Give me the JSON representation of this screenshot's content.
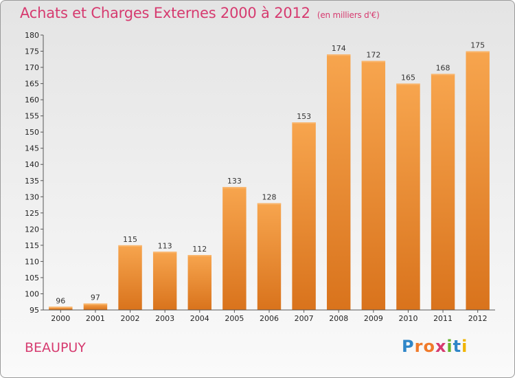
{
  "header": {
    "title": "Achats et Charges Externes 2000 à 2012",
    "unit": "(en milliers d'€)"
  },
  "footer": {
    "commune": "BEAUPUY",
    "logo_letters": [
      "P",
      "r",
      "o",
      "x",
      "i",
      "t",
      "i"
    ],
    "logo_colors": [
      "#2f86c8",
      "#f07a2a",
      "#f07a2a",
      "#d63a6f",
      "#66b32e",
      "#2f86c8",
      "#f0b400"
    ]
  },
  "colors": {
    "title": "#d63a6f",
    "bar_top": "#f7a54e",
    "bar_bottom": "#d9731c"
  },
  "chart_data": {
    "type": "bar",
    "title": "Achats et Charges Externes 2000 à 2012",
    "subtitle": "(en milliers d'€)",
    "xlabel": "",
    "ylabel": "",
    "categories": [
      "2000",
      "2001",
      "2002",
      "2003",
      "2004",
      "2005",
      "2006",
      "2007",
      "2008",
      "2009",
      "2010",
      "2011",
      "2012"
    ],
    "values": [
      96,
      97,
      115,
      113,
      112,
      133,
      128,
      153,
      174,
      172,
      165,
      168,
      175
    ],
    "ylim": [
      95,
      180
    ],
    "ytick_step": 5,
    "grid": false,
    "legend": "none"
  }
}
